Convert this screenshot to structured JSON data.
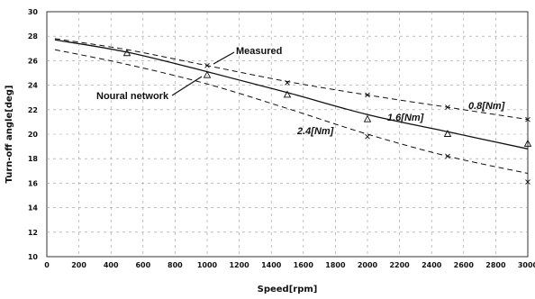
{
  "chart_data": {
    "type": "line",
    "title": "",
    "xlabel": "Speed[rpm]",
    "ylabel": "Turn-off angle[deg]",
    "xlim": [
      0,
      3000
    ],
    "ylim": [
      10,
      30
    ],
    "x_ticks": [
      "0",
      "200",
      "400",
      "600",
      "800",
      "1000",
      "1200",
      "1400",
      "1600",
      "1800",
      "2000",
      "2200",
      "2400",
      "2600",
      "2800",
      "3000"
    ],
    "y_ticks": [
      "10",
      "12",
      "14",
      "16",
      "18",
      "20",
      "22",
      "24",
      "26",
      "28",
      "30"
    ],
    "grid": true,
    "series": [
      {
        "name": "0.8[Nm]",
        "style": "dashed",
        "x": [
          50,
          500,
          1000,
          1500,
          2000,
          2500,
          3000
        ],
        "y": [
          27.8,
          26.9,
          25.6,
          24.3,
          23.2,
          22.2,
          21.2
        ]
      },
      {
        "name": "1.6[Nm]",
        "style": "solid",
        "x": [
          50,
          500,
          1000,
          1500,
          2000,
          2500,
          3000
        ],
        "y": [
          27.7,
          26.7,
          25.1,
          23.4,
          21.6,
          20.2,
          18.8
        ]
      },
      {
        "name": "2.4[Nm]",
        "style": "dashed",
        "x": [
          50,
          500,
          1000,
          1500,
          2000,
          2500,
          3000
        ],
        "y": [
          26.9,
          25.7,
          24.1,
          22.1,
          20.0,
          18.2,
          16.8
        ]
      }
    ],
    "measured": [
      {
        "x": 500,
        "y": 26.6,
        "marker": "triangle"
      },
      {
        "x": 1000,
        "y": 25.6,
        "marker": "x"
      },
      {
        "x": 1000,
        "y": 24.8,
        "marker": "triangle"
      },
      {
        "x": 1500,
        "y": 23.2,
        "marker": "triangle"
      },
      {
        "x": 1500,
        "y": 24.2,
        "marker": "x"
      },
      {
        "x": 2000,
        "y": 21.2,
        "marker": "triangle"
      },
      {
        "x": 2000,
        "y": 19.8,
        "marker": "x"
      },
      {
        "x": 2000,
        "y": 23.2,
        "marker": "x"
      },
      {
        "x": 2500,
        "y": 20.0,
        "marker": "triangle"
      },
      {
        "x": 2500,
        "y": 18.2,
        "marker": "x"
      },
      {
        "x": 2500,
        "y": 22.2,
        "marker": "x"
      },
      {
        "x": 3000,
        "y": 19.2,
        "marker": "triangle"
      },
      {
        "x": 3000,
        "y": 16.1,
        "marker": "x"
      },
      {
        "x": 3000,
        "y": 21.2,
        "marker": "x"
      }
    ],
    "annotations": {
      "measured": "Measured",
      "neural": "Noural network",
      "s08": "0.8[Nm]",
      "s16": "1.6[Nm]",
      "s24": "2.4[Nm]"
    }
  }
}
